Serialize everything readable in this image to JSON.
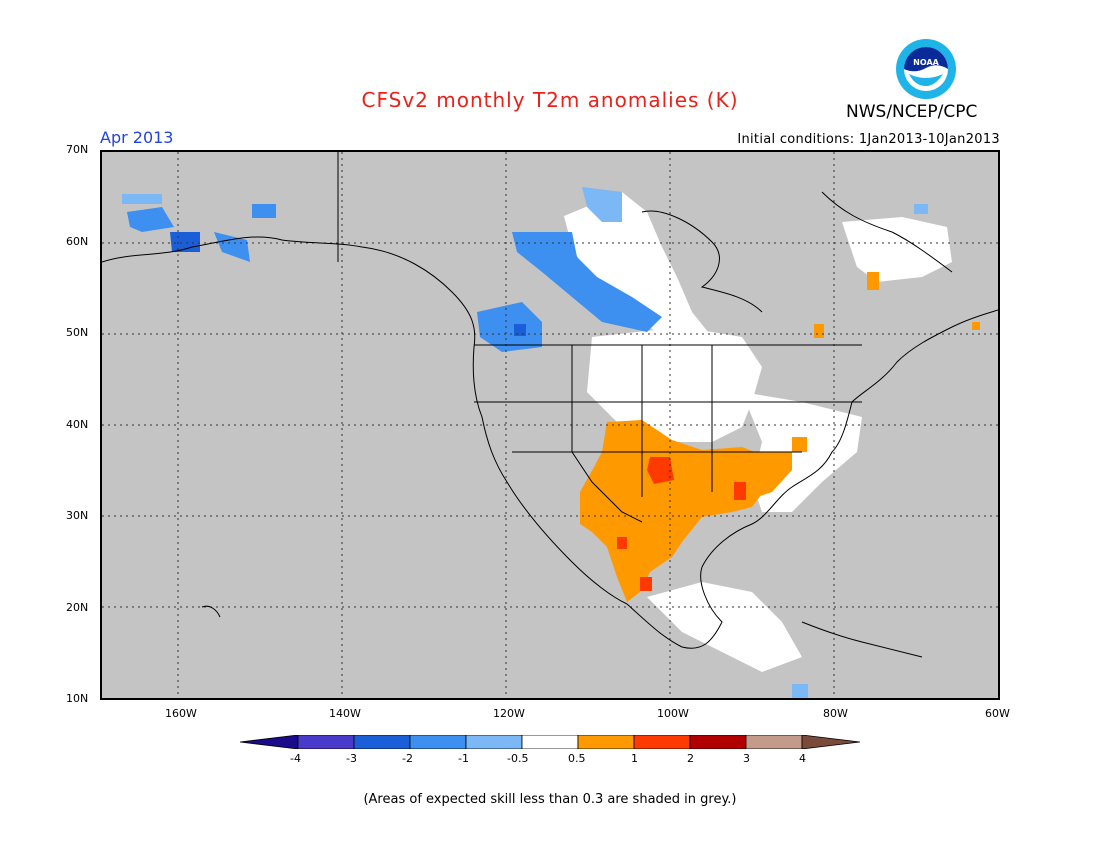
{
  "title": "CFSv2 monthly T2m anomalies (K)",
  "agency": "NWS/NCEP/CPC",
  "logo_text": "NOAA",
  "forecast_month": "Apr 2013",
  "initial_conditions": "Initial conditions: 1Jan2013-10Jan2013",
  "lat_labels": [
    "70N",
    "60N",
    "50N",
    "40N",
    "30N",
    "20N",
    "10N"
  ],
  "lon_labels": [
    "160W",
    "140W",
    "120W",
    "100W",
    "80W",
    "60W"
  ],
  "colorbar": {
    "labels": [
      "-4",
      "-3",
      "-2",
      "-1",
      "-0.5",
      "0.5",
      "1",
      "2",
      "3",
      "4"
    ],
    "colors": [
      "#1a0a8c",
      "#4a3acc",
      "#1a5fd8",
      "#3d8ff0",
      "#7bb8f5",
      "#ffffff",
      "#ff9900",
      "#ff3a00",
      "#b00000",
      "#c49a8a",
      "#7a4a3a"
    ]
  },
  "note": "(Areas of expected skill less than 0.3 are shaded in grey.)",
  "colors": {
    "land_grey": "#c4c4c4",
    "neutral": "#ffffff",
    "warm_05_1": "#ff9900",
    "warm_1_2": "#ff3a00",
    "cool_05_1": "#7bb8f5",
    "cool_1_2": "#3d8ff0",
    "cool_2_3": "#1a5fd8"
  },
  "anomaly_regions": [
    {
      "name": "southern-plains-mexico-warm",
      "anomaly": "+0.5 to +1 K"
    },
    {
      "name": "oklahoma-texas-warm-core",
      "anomaly": "+1 to +2 K"
    },
    {
      "name": "western-canada-cool",
      "anomaly": "-1 to -2 K"
    },
    {
      "name": "alaska-cool",
      "anomaly": "-1 to -3 K"
    }
  ]
}
